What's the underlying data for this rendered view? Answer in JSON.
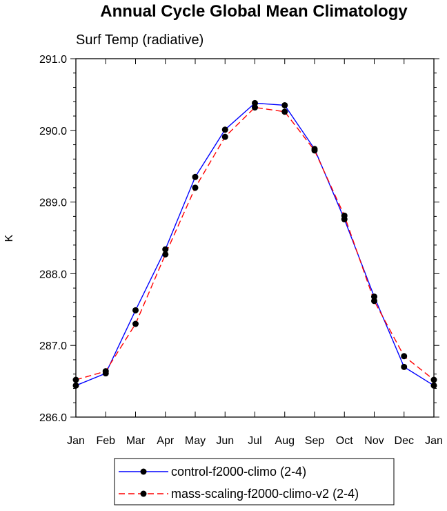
{
  "chart_data": {
    "type": "line",
    "title": "Annual Cycle Global Mean Climatology",
    "subtitle": "Surf Temp (radiative)",
    "xlabel": "",
    "ylabel": "K",
    "categories": [
      "Jan",
      "Feb",
      "Mar",
      "Apr",
      "May",
      "Jun",
      "Jul",
      "Aug",
      "Sep",
      "Oct",
      "Nov",
      "Dec",
      "Jan"
    ],
    "yticks": [
      "286.0",
      "287.0",
      "288.0",
      "289.0",
      "290.0",
      "291.0"
    ],
    "ylim": [
      286.0,
      291.0
    ],
    "series": [
      {
        "name": "control-f2000-climo (2-4)",
        "color": "#0000ff",
        "dash": "solid",
        "values": [
          286.44,
          286.61,
          287.49,
          288.34,
          289.35,
          290.01,
          290.38,
          290.35,
          289.74,
          288.76,
          287.68,
          286.7,
          286.44
        ]
      },
      {
        "name": "mass-scaling-f2000-climo-v2 (2-4)",
        "color": "#ff0000",
        "dash": "dashed",
        "values": [
          286.52,
          286.64,
          287.3,
          288.27,
          289.2,
          289.91,
          290.32,
          290.26,
          289.72,
          288.81,
          287.62,
          286.85,
          286.52
        ]
      }
    ]
  }
}
